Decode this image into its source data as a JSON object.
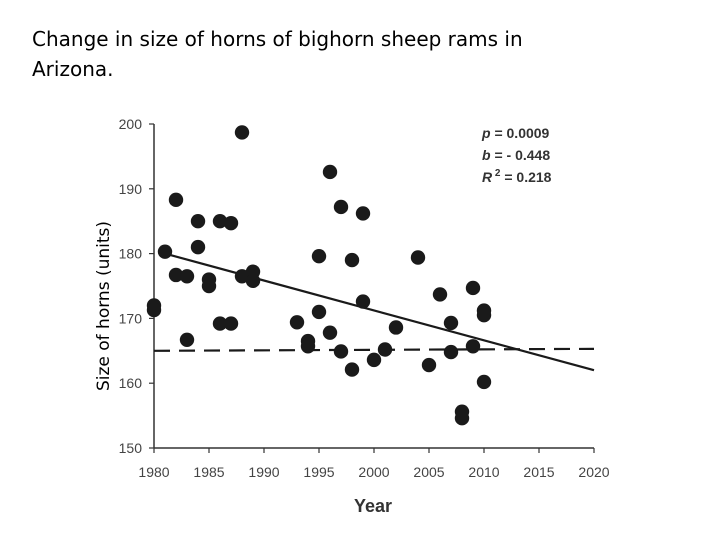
{
  "title": "Change in size of horns of bighorn sheep rams in Arizona.",
  "chart_data": {
    "type": "scatter",
    "title": "Change in size of horns of bighorn sheep rams in Arizona.",
    "xlabel": "Year",
    "ylabel": "Size of horns (units)",
    "xlim": [
      1980,
      2020
    ],
    "ylim": [
      150,
      200
    ],
    "xticks": [
      1980,
      1985,
      1990,
      1995,
      2000,
      2005,
      2010,
      2015,
      2020
    ],
    "yticks": [
      150,
      160,
      170,
      180,
      190,
      200
    ],
    "grid": false,
    "points": [
      {
        "x": 1980,
        "y": 172
      },
      {
        "x": 1980,
        "y": 171.3
      },
      {
        "x": 1981,
        "y": 180.3
      },
      {
        "x": 1982,
        "y": 188.3
      },
      {
        "x": 1982,
        "y": 176.7
      },
      {
        "x": 1983,
        "y": 176.5
      },
      {
        "x": 1983,
        "y": 166.7
      },
      {
        "x": 1984,
        "y": 185
      },
      {
        "x": 1984,
        "y": 181
      },
      {
        "x": 1985,
        "y": 176
      },
      {
        "x": 1985,
        "y": 175
      },
      {
        "x": 1986,
        "y": 185
      },
      {
        "x": 1986,
        "y": 169.2
      },
      {
        "x": 1987,
        "y": 184.7
      },
      {
        "x": 1987,
        "y": 169.2
      },
      {
        "x": 1988,
        "y": 198.7
      },
      {
        "x": 1988,
        "y": 176.5
      },
      {
        "x": 1989,
        "y": 177.2
      },
      {
        "x": 1989,
        "y": 175.8
      },
      {
        "x": 1993,
        "y": 169.4
      },
      {
        "x": 1994,
        "y": 166.5
      },
      {
        "x": 1994,
        "y": 165.7
      },
      {
        "x": 1995,
        "y": 179.6
      },
      {
        "x": 1995,
        "y": 171
      },
      {
        "x": 1996,
        "y": 192.6
      },
      {
        "x": 1996,
        "y": 167.8
      },
      {
        "x": 1997,
        "y": 187.2
      },
      {
        "x": 1997,
        "y": 164.9
      },
      {
        "x": 1998,
        "y": 179
      },
      {
        "x": 1998,
        "y": 162.1
      },
      {
        "x": 1999,
        "y": 186.2
      },
      {
        "x": 1999,
        "y": 172.6
      },
      {
        "x": 2000,
        "y": 163.6
      },
      {
        "x": 2001,
        "y": 165.2
      },
      {
        "x": 2002,
        "y": 168.6
      },
      {
        "x": 2004,
        "y": 179.4
      },
      {
        "x": 2005,
        "y": 162.8
      },
      {
        "x": 2006,
        "y": 173.7
      },
      {
        "x": 2007,
        "y": 169.3
      },
      {
        "x": 2007,
        "y": 164.8
      },
      {
        "x": 2008,
        "y": 155.6
      },
      {
        "x": 2008,
        "y": 154.6
      },
      {
        "x": 2009,
        "y": 174.7
      },
      {
        "x": 2009,
        "y": 165.7
      },
      {
        "x": 2010,
        "y": 171.2
      },
      {
        "x": 2010,
        "y": 170.5
      },
      {
        "x": 2010,
        "y": 160.2
      }
    ],
    "trend_solid": {
      "x": [
        1981,
        2020
      ],
      "y": [
        180,
        162
      ]
    },
    "trend_dashed": {
      "x": [
        1980,
        2020
      ],
      "y": [
        165,
        165.3
      ]
    },
    "annotations": [
      {
        "label": "p",
        "eq": " = ",
        "value": "0.0009"
      },
      {
        "label": "b",
        "eq": " = ",
        "value": "- 0.448"
      },
      {
        "label": "R",
        "sup": "2",
        "eq": " = ",
        "value": "0.218"
      }
    ],
    "colors": {
      "points": "#1a1a1a",
      "axis": "#333333",
      "line": "#1a1a1a"
    }
  }
}
